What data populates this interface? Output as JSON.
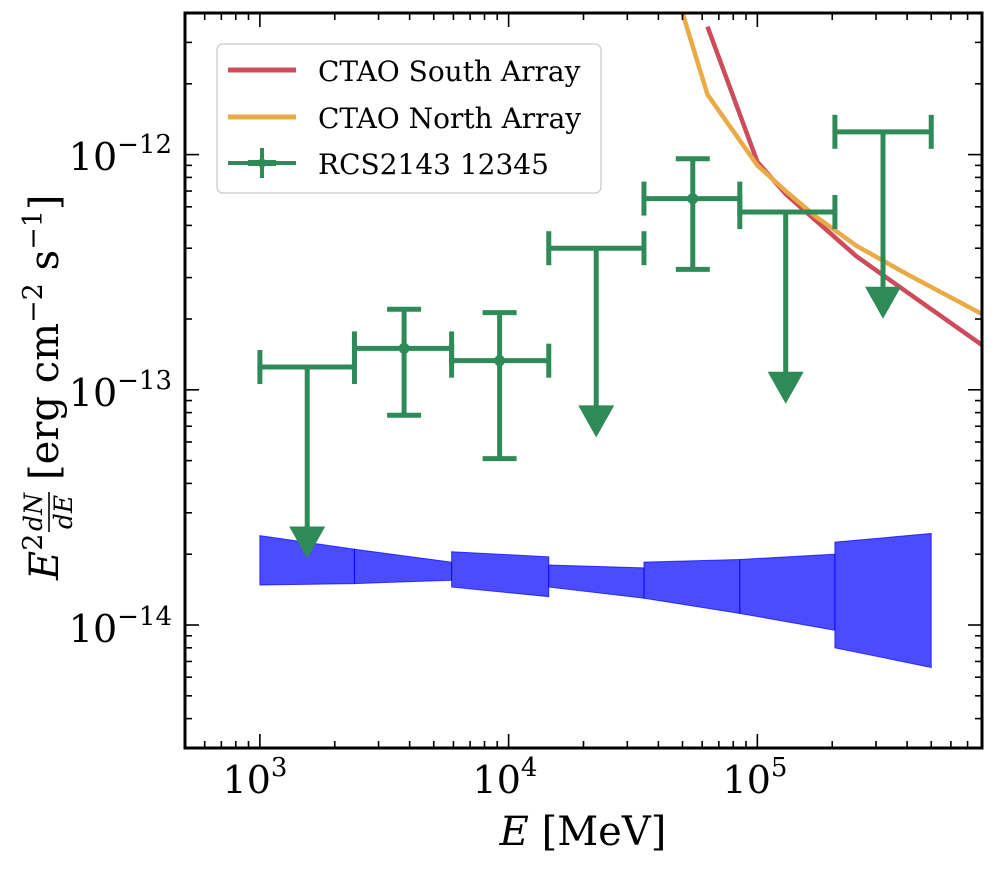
{
  "chart_data": {
    "type": "line",
    "xscale": "log",
    "yscale": "log",
    "xlim": [
      500,
      800000
    ],
    "ylim": [
      3e-15,
      4e-12
    ],
    "xlabel_var": "E",
    "xlabel_unit": "[MeV]",
    "ylabel_prefix": "E",
    "ylabel_exp": "2",
    "ylabel_num": "dN",
    "ylabel_den": "dE",
    "ylabel_unit": "[erg cm",
    "ylabel_exp2": "−2",
    "ylabel_s": " s",
    "ylabel_exp3": "−1",
    "ylabel_close": "]",
    "x_ticks": [
      {
        "value": 1000,
        "base": "10",
        "exp": "3"
      },
      {
        "value": 10000,
        "base": "10",
        "exp": "4"
      },
      {
        "value": 100000,
        "base": "10",
        "exp": "5"
      }
    ],
    "y_ticks": [
      {
        "value": 1e-14,
        "base": "10",
        "exp": "−14"
      },
      {
        "value": 1e-13,
        "base": "10",
        "exp": "−13"
      },
      {
        "value": 1e-12,
        "base": "10",
        "exp": "−12"
      }
    ],
    "legend_position": "top-left",
    "series": [
      {
        "name": "CTAO South Array",
        "kind": "line",
        "color": "#cc4c5c",
        "x": [
          63000,
          100000,
          130000,
          170000,
          250000,
          400000,
          800000
        ],
        "y": [
          3.5e-12,
          9.3e-13,
          6.8e-13,
          5.3e-13,
          3.7e-13,
          2.6e-13,
          1.55e-13
        ]
      },
      {
        "name": "CTAO North Array",
        "kind": "line",
        "color": "#eaaa45",
        "x": [
          50000,
          63000,
          100000,
          130000,
          170000,
          250000,
          400000,
          800000
        ],
        "y": [
          4e-12,
          1.8e-12,
          9e-13,
          7e-13,
          5.5e-13,
          4.1e-13,
          3.1e-13,
          2.1e-13
        ]
      },
      {
        "name": "RCS2143 12345",
        "kind": "errorbar",
        "color": "#2e8b57",
        "points": [
          {
            "x": 1550,
            "xlo": 1000,
            "xhi": 2400,
            "y": 1.25e-13,
            "upper_limit": true,
            "arrow_to": 2.2e-14
          },
          {
            "x": 3800,
            "xlo": 2400,
            "xhi": 5900,
            "y": 1.5e-13,
            "ylo": 7.8e-14,
            "yhi": 2.2e-13,
            "upper_limit": false
          },
          {
            "x": 9200,
            "xlo": 5900,
            "xhi": 14500,
            "y": 1.33e-13,
            "ylo": 5.1e-14,
            "yhi": 2.13e-13,
            "upper_limit": false
          },
          {
            "x": 22500,
            "xlo": 14500,
            "xhi": 35000,
            "y": 4e-13,
            "upper_limit": true,
            "arrow_to": 7.2e-14
          },
          {
            "x": 55000,
            "xlo": 35000,
            "xhi": 85000,
            "y": 6.5e-13,
            "ylo": 3.25e-13,
            "yhi": 9.6e-13,
            "upper_limit": false
          },
          {
            "x": 130000,
            "xlo": 85000,
            "xhi": 205000,
            "y": 5.7e-13,
            "upper_limit": true,
            "arrow_to": 1e-13
          },
          {
            "x": 320000,
            "xlo": 205000,
            "xhi": 500000,
            "y": 1.25e-12,
            "upper_limit": true,
            "arrow_to": 2.3e-13
          }
        ]
      }
    ],
    "band": {
      "color": "#0000ff",
      "segments": [
        {
          "xlo": 1000,
          "xhi": 2400,
          "top": [
            2.4e-14,
            2.1e-14
          ],
          "bottom": [
            1.48e-14,
            1.5e-14
          ]
        },
        {
          "xlo": 2400,
          "xhi": 5900,
          "top": [
            2.1e-14,
            1.85e-14
          ],
          "bottom": [
            1.5e-14,
            1.55e-14
          ]
        },
        {
          "xlo": 5900,
          "xhi": 14500,
          "top": [
            2.05e-14,
            1.95e-14
          ],
          "bottom": [
            1.45e-14,
            1.32e-14
          ]
        },
        {
          "xlo": 14500,
          "xhi": 35000,
          "top": [
            1.8e-14,
            1.75e-14
          ],
          "bottom": [
            1.45e-14,
            1.3e-14
          ]
        },
        {
          "xlo": 35000,
          "xhi": 85000,
          "top": [
            1.85e-14,
            1.9e-14
          ],
          "bottom": [
            1.3e-14,
            1.12e-14
          ]
        },
        {
          "xlo": 85000,
          "xhi": 205000,
          "top": [
            1.9e-14,
            2e-14
          ],
          "bottom": [
            1.12e-14,
            9.5e-15
          ]
        },
        {
          "xlo": 205000,
          "xhi": 500000,
          "top": [
            2.25e-14,
            2.45e-14
          ],
          "bottom": [
            8e-15,
            6.6e-15
          ]
        }
      ]
    }
  }
}
